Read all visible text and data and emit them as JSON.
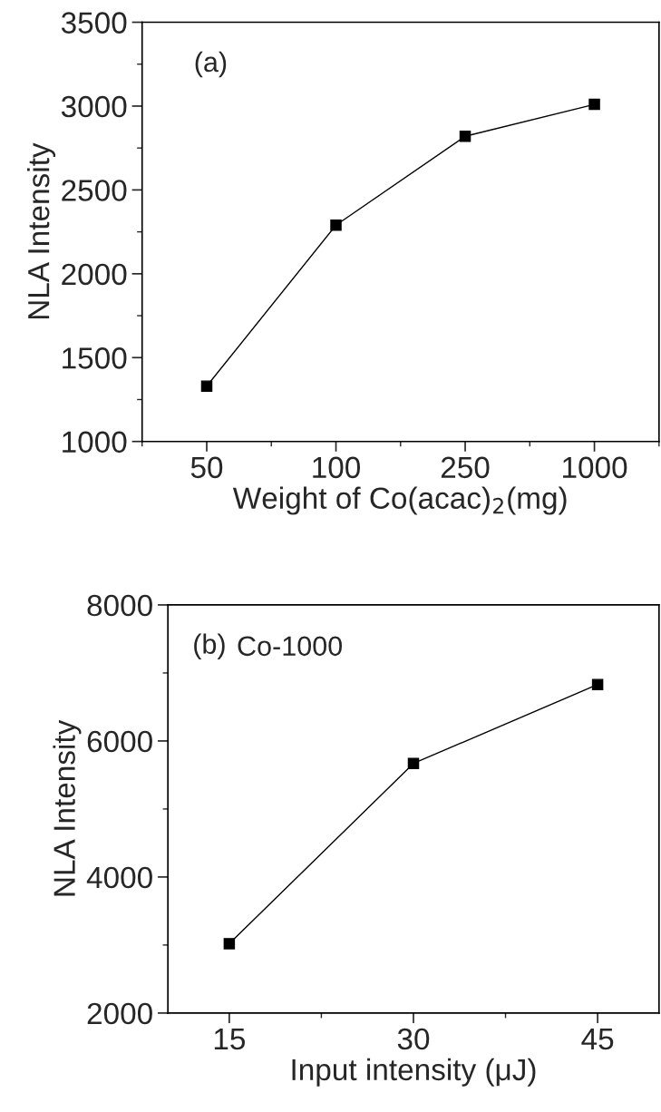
{
  "chart_data": [
    {
      "type": "line",
      "xlabel": "Weight of Co(acac)$_{2}$(mg)",
      "ylabel": "NLA Intensity",
      "annotations": [
        "(a)"
      ],
      "categories": [
        "50",
        "100",
        "250",
        "1000"
      ],
      "series": [
        {
          "color": "#000000",
          "values": [
            1330,
            2290,
            2820,
            3010
          ]
        }
      ],
      "ylim": [
        1000,
        3500
      ],
      "yticks": [
        1000,
        1500,
        2000,
        2500,
        3000,
        3500
      ],
      "marker": "square",
      "line_style": "solid"
    },
    {
      "type": "line",
      "xlabel": "Input intensity (μJ)",
      "ylabel": "NLA Intensity",
      "annotations": [
        "(b)",
        "Co-1000"
      ],
      "x": [
        15,
        30,
        45
      ],
      "series": [
        {
          "color": "#000000",
          "values": [
            3020,
            5670,
            6830
          ]
        }
      ],
      "xlim": [
        10,
        50
      ],
      "xticks": [
        15,
        30,
        45
      ],
      "ylim": [
        2000,
        8000
      ],
      "yticks": [
        2000,
        4000,
        6000,
        8000
      ],
      "marker": "square",
      "line_style": "solid"
    }
  ]
}
